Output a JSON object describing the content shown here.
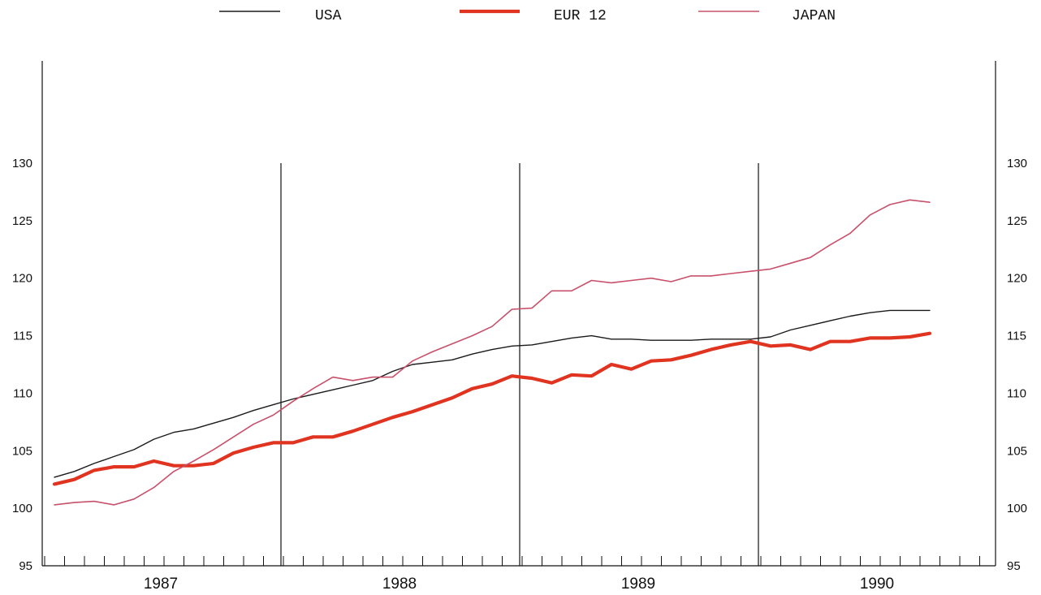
{
  "chart_data": {
    "type": "line",
    "title": "",
    "xlabel": "",
    "ylabel": "",
    "ylim": [
      95,
      130
    ],
    "yticks": [
      95,
      100,
      105,
      110,
      115,
      120,
      125,
      130
    ],
    "years": [
      "1987",
      "1988",
      "1989",
      "1990"
    ],
    "x": [
      "1987-01",
      "1987-02",
      "1987-03",
      "1987-04",
      "1987-05",
      "1987-06",
      "1987-07",
      "1987-08",
      "1987-09",
      "1987-10",
      "1987-11",
      "1987-12",
      "1988-01",
      "1988-02",
      "1988-03",
      "1988-04",
      "1988-05",
      "1988-06",
      "1988-07",
      "1988-08",
      "1988-09",
      "1988-10",
      "1988-11",
      "1988-12",
      "1989-01",
      "1989-02",
      "1989-03",
      "1989-04",
      "1989-05",
      "1989-06",
      "1989-07",
      "1989-08",
      "1989-09",
      "1989-10",
      "1989-11",
      "1989-12",
      "1990-01",
      "1990-02",
      "1990-03",
      "1990-04",
      "1990-05",
      "1990-06",
      "1990-07",
      "1990-08",
      "1990-09"
    ],
    "legend_position": "top",
    "grid": false,
    "series": [
      {
        "name": "USA",
        "color": "#1a1a1a",
        "values": [
          102.7,
          103.2,
          103.9,
          104.5,
          105.1,
          106.0,
          106.6,
          106.9,
          107.4,
          107.9,
          108.5,
          109.0,
          109.5,
          109.9,
          110.3,
          110.7,
          111.1,
          111.9,
          112.5,
          112.7,
          112.9,
          113.4,
          113.8,
          114.1,
          114.2,
          114.5,
          114.8,
          115.0,
          114.7,
          114.7,
          114.6,
          114.6,
          114.6,
          114.7,
          114.7,
          114.7,
          114.9,
          115.5,
          115.9,
          116.3,
          116.7,
          117.0,
          117.2,
          117.2,
          117.2
        ]
      },
      {
        "name": "EUR 12",
        "color": "#e03420",
        "values": [
          102.1,
          102.5,
          103.3,
          103.6,
          103.6,
          104.1,
          103.7,
          103.7,
          103.9,
          104.8,
          105.3,
          105.7,
          105.7,
          106.2,
          106.2,
          106.7,
          107.3,
          107.9,
          108.4,
          109.0,
          109.6,
          110.4,
          110.8,
          111.5,
          111.3,
          110.9,
          111.6,
          111.5,
          112.5,
          112.1,
          112.8,
          112.9,
          113.3,
          113.8,
          114.2,
          114.5,
          114.1,
          114.2,
          113.8,
          114.5,
          114.5,
          114.8,
          114.8,
          114.9,
          115.2
        ]
      },
      {
        "name": "JAPAN",
        "color": "#c8506a",
        "values": [
          100.3,
          100.5,
          100.6,
          100.3,
          100.8,
          101.8,
          103.2,
          104.1,
          105.1,
          106.2,
          107.3,
          108.1,
          109.3,
          110.4,
          111.4,
          111.1,
          111.4,
          111.4,
          112.8,
          113.6,
          114.3,
          115.0,
          115.8,
          117.3,
          117.4,
          118.9,
          118.9,
          119.8,
          119.6,
          119.8,
          120.0,
          119.7,
          120.2,
          120.2,
          120.4,
          120.6,
          120.8,
          121.3,
          121.8,
          122.9,
          123.9,
          125.5,
          126.4,
          126.8,
          126.6
        ]
      }
    ]
  }
}
